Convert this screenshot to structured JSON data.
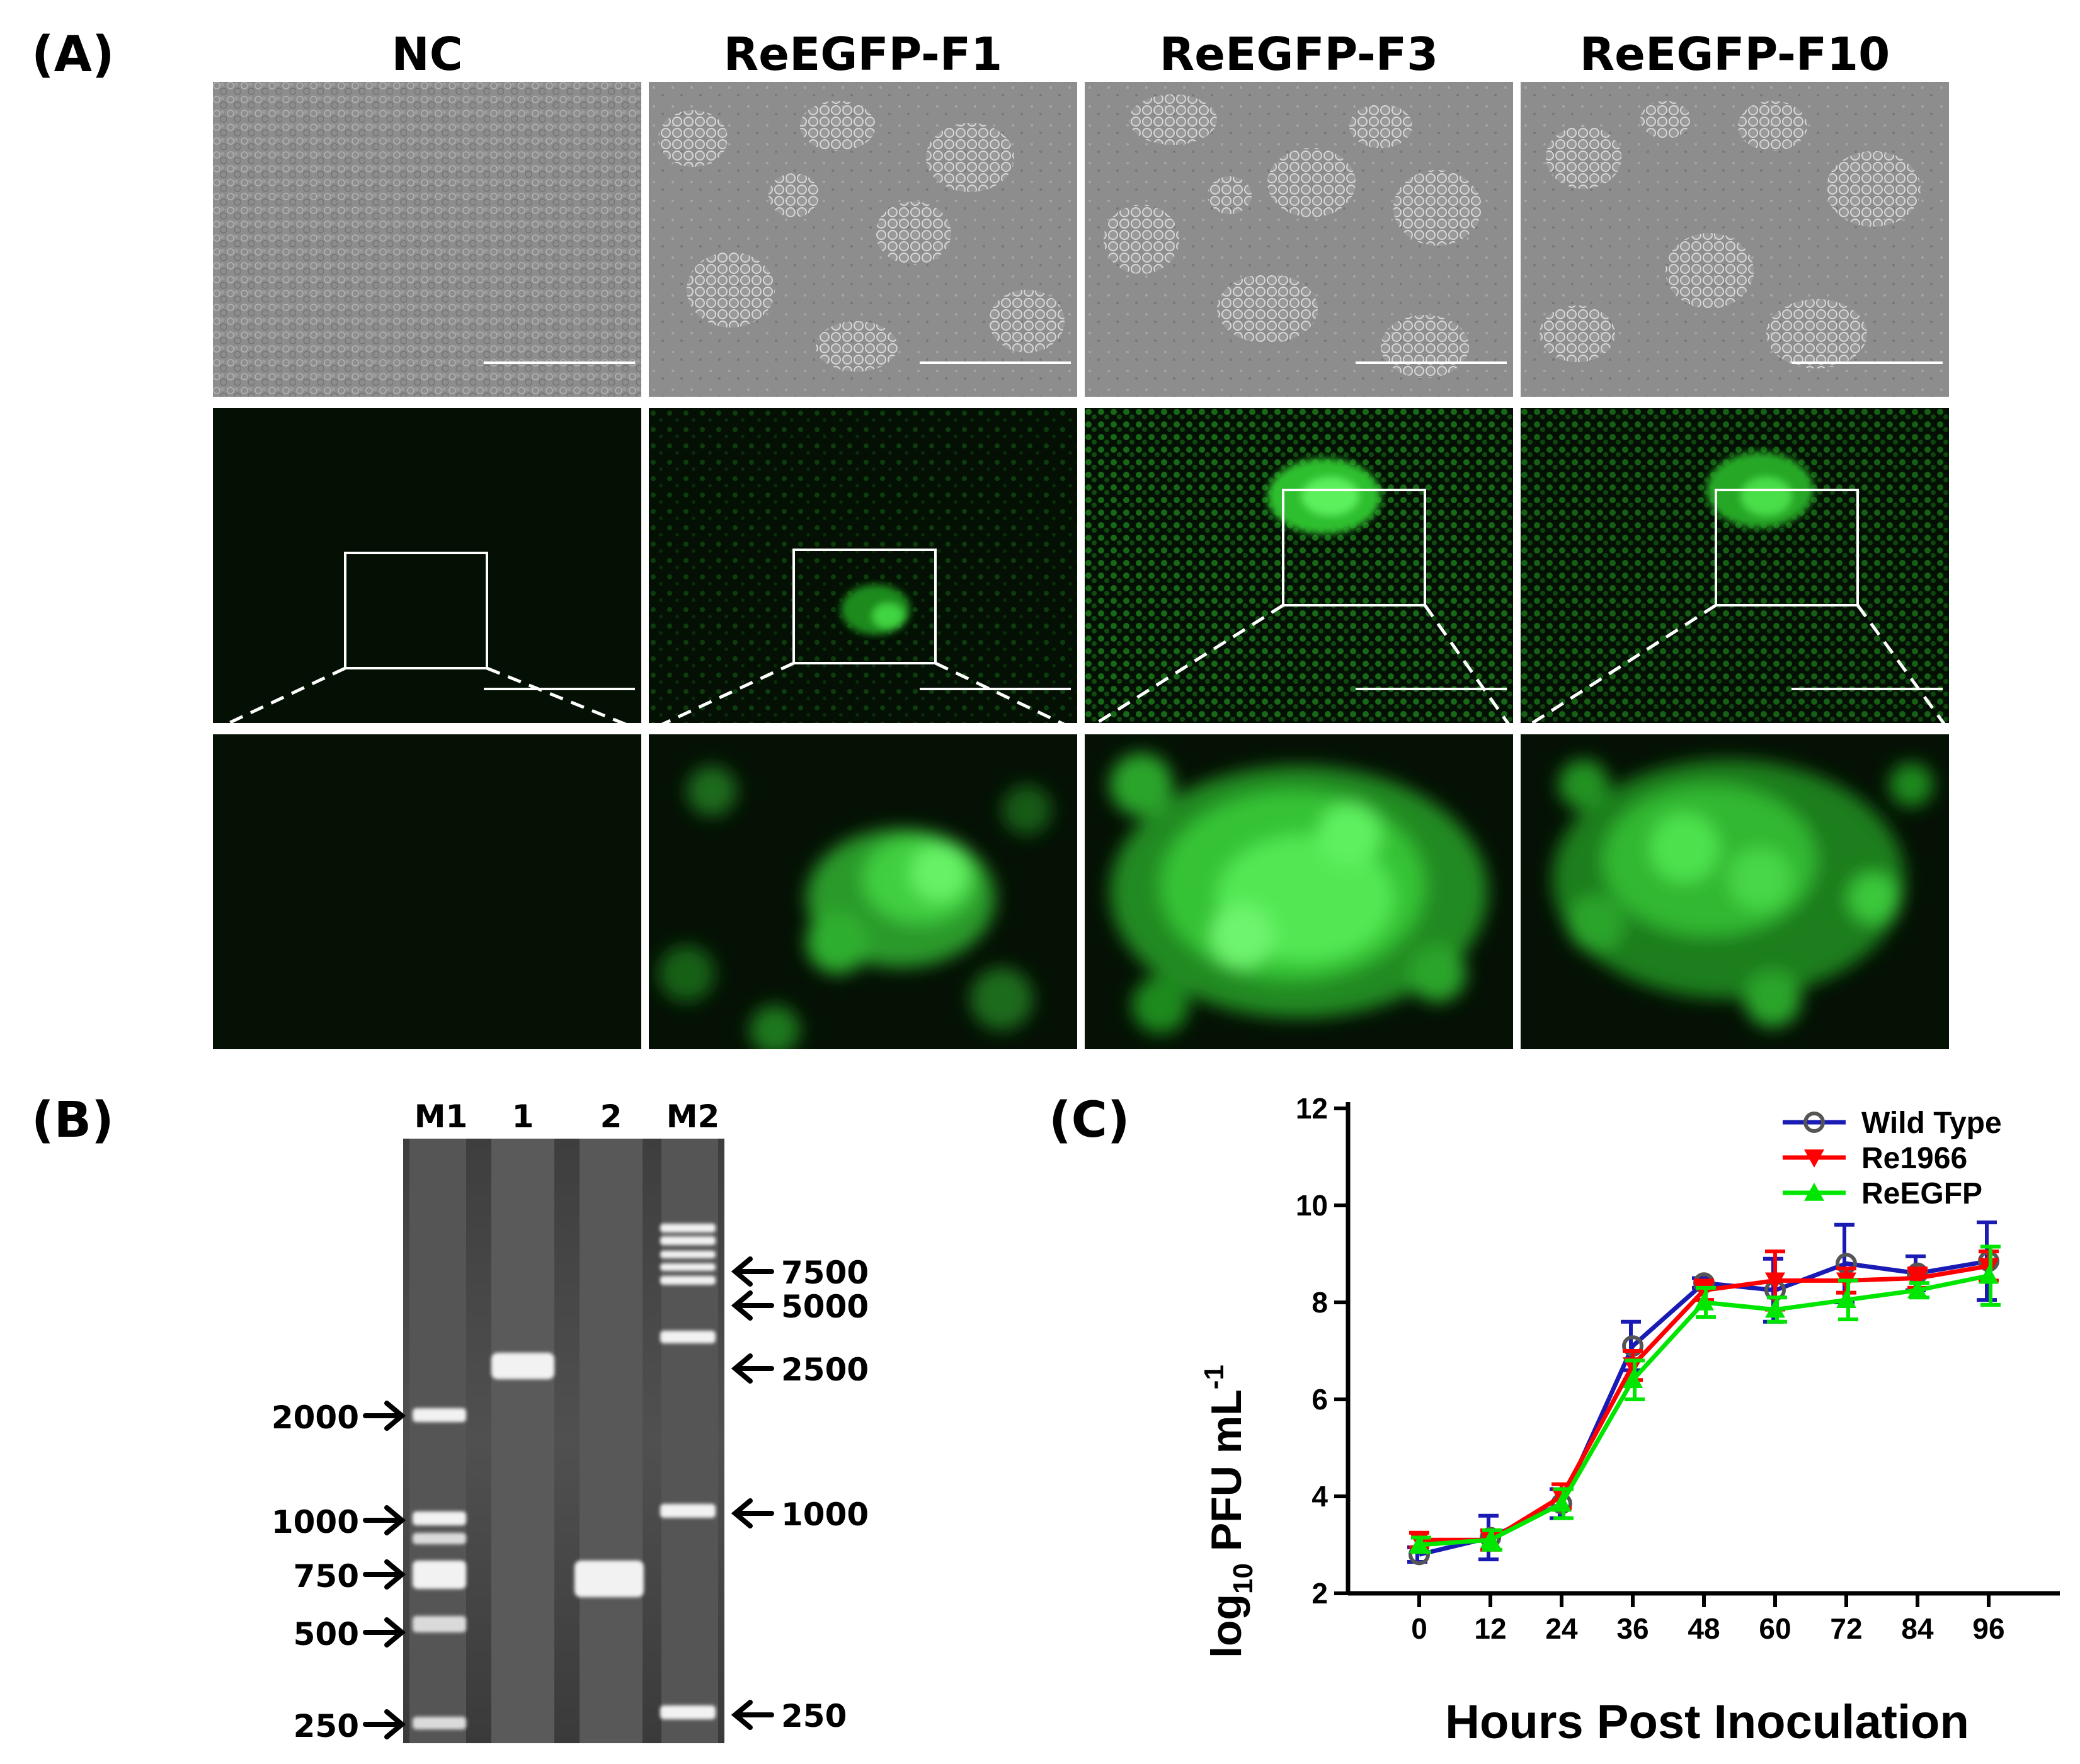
{
  "panel_a": {
    "label": "(A)",
    "columns": [
      "NC",
      "ReEGFP-F1",
      "ReEGFP-F3",
      "ReEGFP-F10"
    ]
  },
  "panel_b": {
    "label": "(B)",
    "lanes": [
      "M1",
      "1",
      "2",
      "M2"
    ],
    "left_markers": [
      "2000",
      "1000",
      "750",
      "500",
      "250"
    ],
    "right_markers": [
      "7500",
      "5000",
      "2500",
      "1000",
      "250"
    ]
  },
  "panel_c": {
    "label": "(C)"
  },
  "colors": {
    "wild_type": "#1a1ab4",
    "re1966": "#ff0000",
    "reegfp": "#00e600",
    "wild_type_marker": "#555555"
  },
  "chart_data": {
    "type": "line",
    "x": [
      0,
      12,
      24,
      36,
      48,
      60,
      72,
      84,
      96
    ],
    "xlabel": "Hours Post Inoculation",
    "ylabel": "log10 PFU mL-1",
    "ylabel_parts": {
      "base": "log",
      "sub": "10",
      "unit": " PFU mL",
      "sup": "-1"
    },
    "ylim": [
      2,
      12
    ],
    "yticks": [
      2,
      4,
      6,
      8,
      10,
      12
    ],
    "xticks": [
      0,
      12,
      24,
      36,
      48,
      60,
      72,
      84,
      96
    ],
    "legend_position": "top-right",
    "series": [
      {
        "name": "Wild Type",
        "values": [
          2.8,
          3.15,
          3.85,
          7.1,
          8.4,
          8.25,
          8.8,
          8.6,
          8.85
        ],
        "errors": [
          0.15,
          0.45,
          0.3,
          0.5,
          0.1,
          0.65,
          0.8,
          0.35,
          0.8
        ],
        "marker": "circle"
      },
      {
        "name": "Re1966",
        "values": [
          3.1,
          3.1,
          4.0,
          6.7,
          8.25,
          8.45,
          8.45,
          8.5,
          8.75
        ],
        "errors": [
          0.15,
          0.2,
          0.25,
          0.3,
          0.2,
          0.6,
          0.25,
          0.2,
          0.3
        ],
        "marker": "triangle-down"
      },
      {
        "name": "ReEGFP",
        "values": [
          3.0,
          3.1,
          3.85,
          6.4,
          8.0,
          7.85,
          8.05,
          8.25,
          8.55
        ],
        "errors": [
          0.15,
          0.2,
          0.3,
          0.4,
          0.3,
          0.25,
          0.4,
          0.15,
          0.6
        ],
        "marker": "triangle-up"
      }
    ]
  }
}
